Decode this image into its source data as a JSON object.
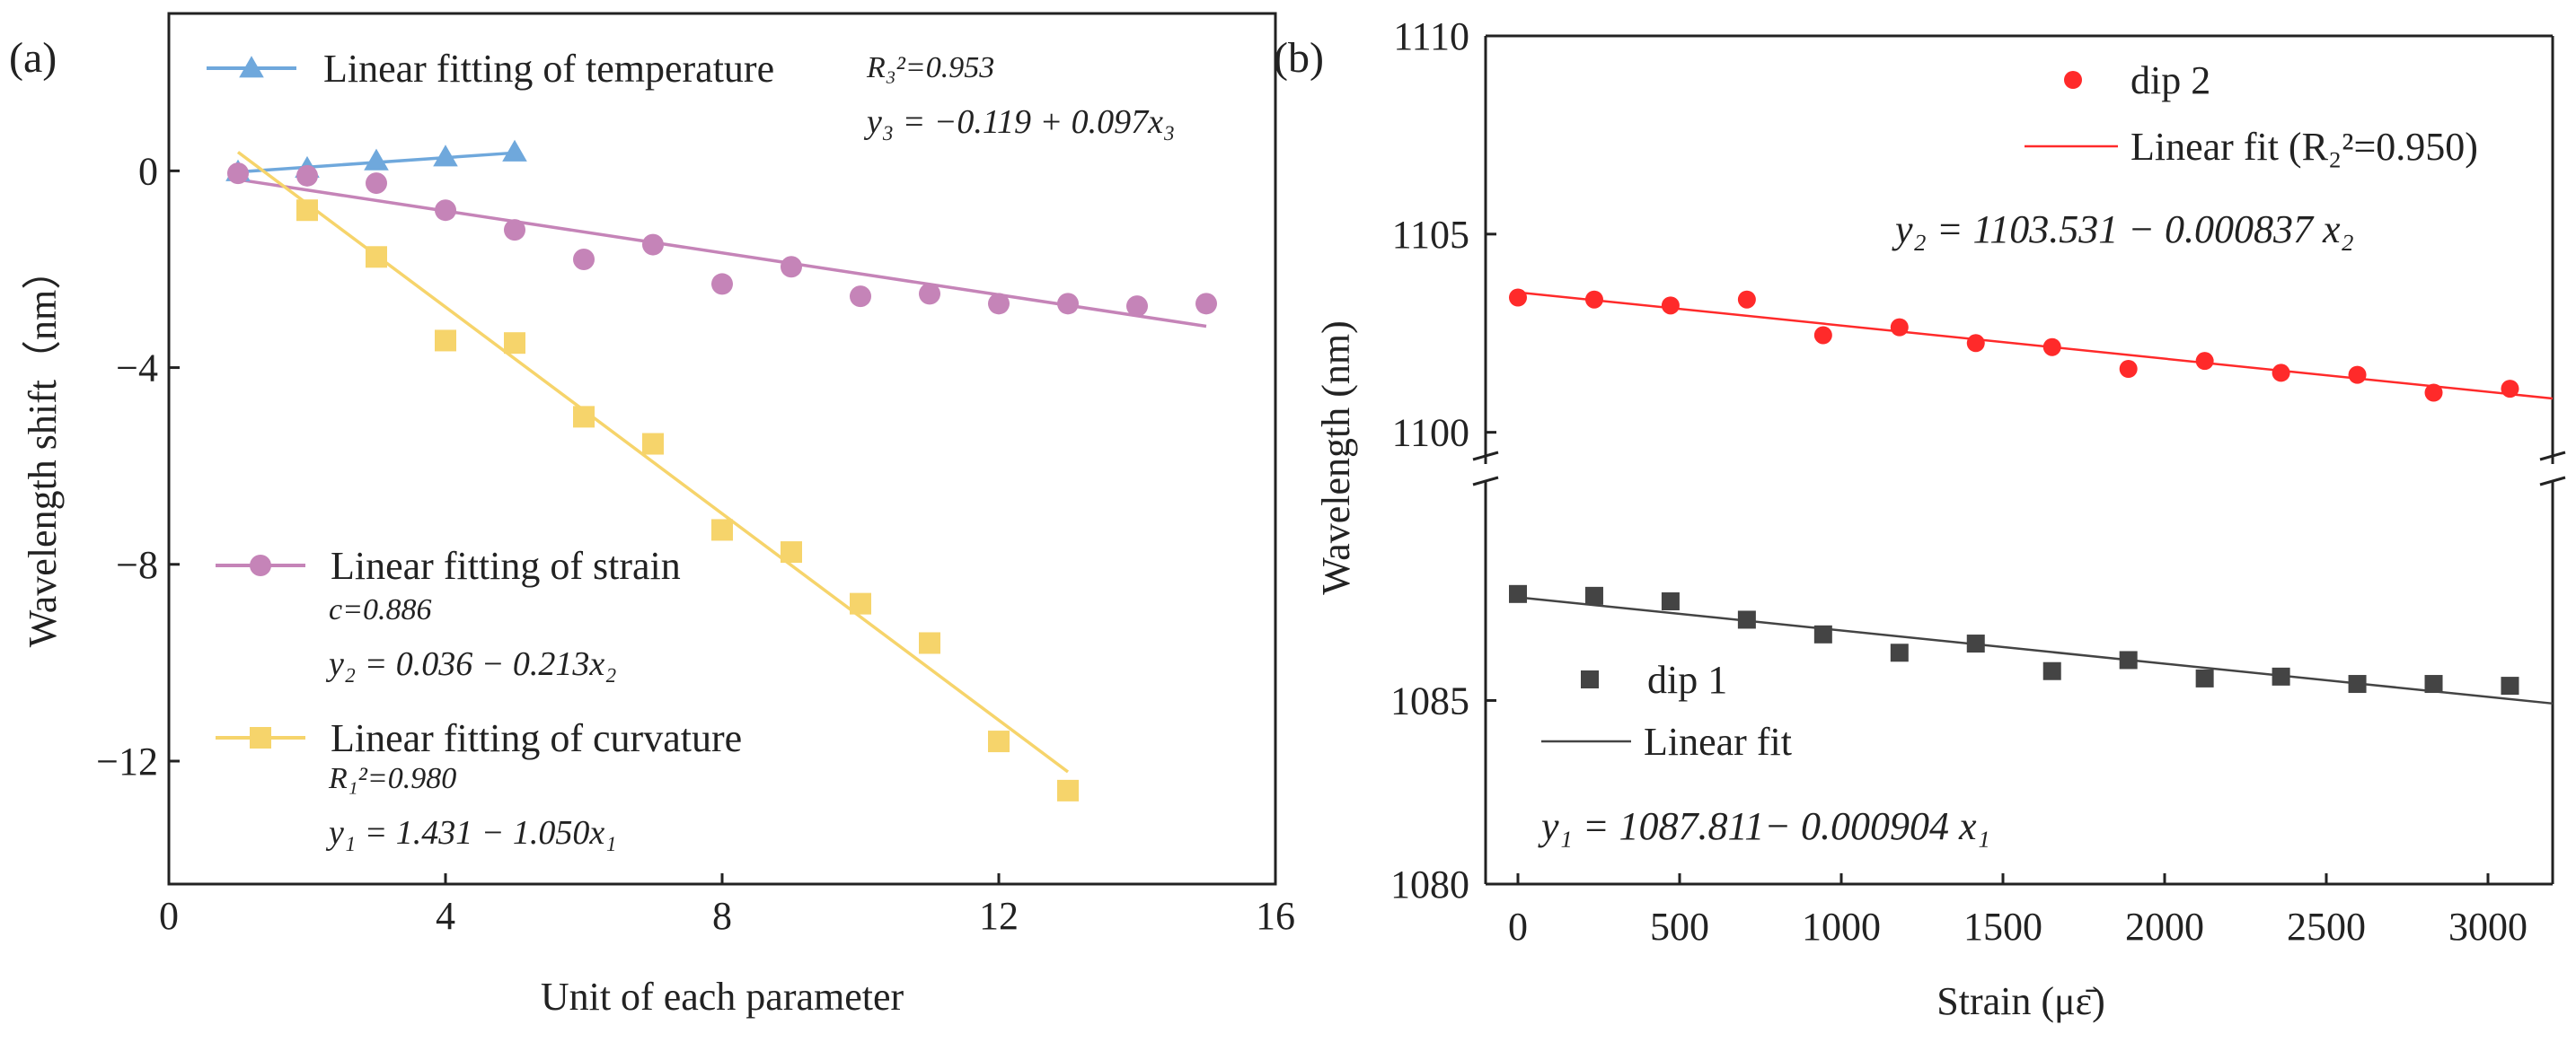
{
  "chart_data": [
    {
      "panel_label": "(a)",
      "type": "scatter",
      "xlabel": "Unit  of each parameter",
      "ylabel": "Wavelength shift（nm）",
      "xlim": [
        0,
        16
      ],
      "ylim": [
        -14.5,
        3.2
      ],
      "xticks": [
        0,
        4,
        8,
        12,
        16
      ],
      "yticks": [
        0,
        -4,
        -8,
        -12
      ],
      "xtick_labels": [
        "0",
        "4",
        "8",
        "12",
        "16"
      ],
      "ytick_labels": [
        "0",
        "−4",
        "−8",
        "−12"
      ],
      "series": [
        {
          "name": "Linear fitting of temperature",
          "color": "#6fa8dc",
          "marker": "triangle",
          "x": [
            1,
            2,
            3,
            4,
            5
          ],
          "y": [
            -0.02,
            0.05,
            0.2,
            0.28,
            0.38
          ],
          "fit": {
            "x": [
              1,
              5
            ],
            "y": [
              -0.022,
              0.366
            ]
          },
          "annotations": [
            "R₃²=0.953",
            "y₃ = −0.119 + 0.097x₃"
          ]
        },
        {
          "name": "Linear fitting of strain",
          "color": "#c584b8",
          "marker": "circle",
          "x": [
            1,
            2,
            3,
            4,
            5,
            6,
            7,
            8,
            9,
            10,
            11,
            12,
            13,
            14,
            15
          ],
          "y": [
            -0.05,
            -0.1,
            -0.25,
            -0.8,
            -1.2,
            -1.8,
            -1.5,
            -2.3,
            -1.95,
            -2.55,
            -2.5,
            -2.7,
            -2.7,
            -2.75,
            -2.7
          ],
          "fit": {
            "x": [
              1,
              15
            ],
            "y": [
              -0.177,
              -3.159
            ]
          },
          "annotations": [
            "c=0.886",
            "y₂ = 0.036 − 0.213x₂"
          ]
        },
        {
          "name": "Linear fitting of curvature",
          "color": "#f6d46b",
          "marker": "square",
          "x": [
            2,
            3,
            4,
            5,
            6,
            7,
            8,
            9,
            10,
            11,
            12,
            13
          ],
          "y": [
            -0.8,
            -1.75,
            -3.45,
            -3.5,
            -5.0,
            -5.55,
            -7.3,
            -7.75,
            -8.8,
            -9.6,
            -11.6,
            -12.6
          ],
          "fit": {
            "x": [
              1,
              13
            ],
            "y": [
              0.381,
              -12.219
            ]
          },
          "annotations": [
            "R₁²=0.980",
            "y₁ = 1.431 − 1.050x₁"
          ]
        }
      ]
    },
    {
      "panel_label": "(b)",
      "type": "scatter",
      "xlabel": "Strain (με̄)",
      "ylabel": "Wavelength (nm)",
      "xlim": [
        -100,
        3200
      ],
      "xticks": [
        0,
        500,
        1000,
        1500,
        2000,
        2500,
        3000
      ],
      "xtick_labels": [
        "0",
        "500",
        "1000",
        "1500",
        "2000",
        "2500",
        "3000"
      ],
      "broken_y_axis": true,
      "ylim_upper": [
        1099.2,
        1110
      ],
      "ylim_lower": [
        1080,
        1091
      ],
      "yticks_upper": [
        1100,
        1105,
        1110
      ],
      "yticks_lower": [
        1080,
        1085
      ],
      "ytick_labels_upper": [
        "1100",
        "1105",
        "1110"
      ],
      "ytick_labels_lower": [
        "1080",
        "1085"
      ],
      "series": [
        {
          "name": "dip 2",
          "color": "#ff2a2a",
          "marker": "circle",
          "x": [
            0,
            236,
            472,
            708,
            944,
            1180,
            1416,
            1652,
            1888,
            2124,
            2360,
            2596,
            2832,
            3068
          ],
          "y": [
            1103.4,
            1103.35,
            1103.2,
            1103.35,
            1102.45,
            1102.65,
            1102.25,
            1102.15,
            1101.6,
            1101.8,
            1101.5,
            1101.45,
            1101.0,
            1101.1
          ],
          "fit_label": "Linear fit (R₂²=0.950)",
          "fit": {
            "x": [
              0,
              3200
            ],
            "y": [
              1103.531,
              1100.853
            ]
          },
          "equation": "y₂ = 1103.531 − 0.000837 x₂"
        },
        {
          "name": "dip 1",
          "color": "#444444",
          "marker": "square",
          "x": [
            0,
            236,
            472,
            708,
            944,
            1180,
            1416,
            1652,
            1888,
            2124,
            2360,
            2596,
            2832,
            3068
          ],
          "y": [
            1087.9,
            1087.85,
            1087.7,
            1087.2,
            1086.8,
            1086.3,
            1086.55,
            1085.8,
            1086.1,
            1085.6,
            1085.65,
            1085.45,
            1085.45,
            1085.4
          ],
          "fit_label": "Linear fit",
          "fit": {
            "x": [
              0,
              3200
            ],
            "y": [
              1087.811,
              1084.918
            ]
          },
          "equation": "y₁ = 1087.811− 0.000904 x₁"
        }
      ]
    }
  ]
}
